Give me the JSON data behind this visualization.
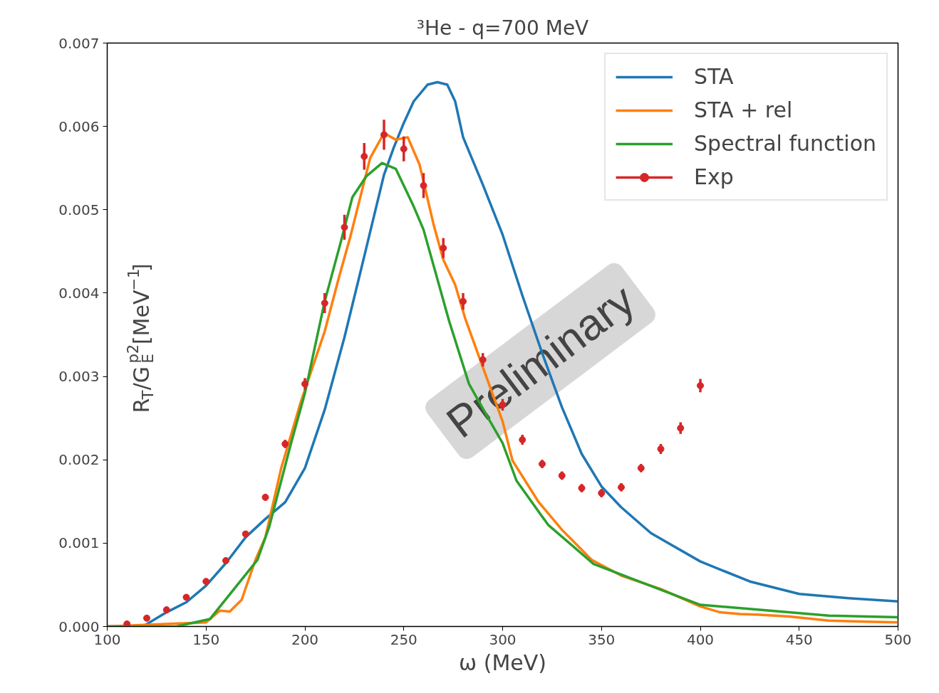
{
  "chart_data": {
    "type": "line",
    "title": "³He - q=700 MeV",
    "xlabel": "ω (MeV)",
    "ylabel": "R$_{T}$/G$_{E}$$^{p2}$[MeV$^{−1}$]",
    "xlim": [
      100,
      500
    ],
    "ylim": [
      0,
      0.007
    ],
    "xticks": [
      100,
      150,
      200,
      250,
      300,
      350,
      400,
      450,
      500
    ],
    "yticks": [
      {
        "value": 0,
        "label": "0.000"
      },
      {
        "value": 0.001,
        "label": "0.001"
      },
      {
        "value": 0.002,
        "label": "0.002"
      },
      {
        "value": 0.003,
        "label": "0.003"
      },
      {
        "value": 0.004,
        "label": "0.004"
      },
      {
        "value": 0.005,
        "label": "0.005"
      },
      {
        "value": 0.006,
        "label": "0.006"
      },
      {
        "value": 0.007,
        "label": "0.007"
      }
    ],
    "grid": false,
    "legend": "top right",
    "line_style": "solid",
    "series": [
      {
        "name": "STA",
        "color": "#1f77b4",
        "x": [
          100,
          118,
          130,
          140,
          150,
          160,
          170,
          180,
          190,
          200,
          210,
          220,
          230,
          240,
          245,
          250,
          255,
          262,
          267,
          272,
          276,
          280,
          290,
          300,
          310,
          320,
          330,
          340,
          350,
          360,
          375,
          400,
          425,
          450,
          475,
          500
        ],
        "values": [
          0,
          0,
          0.00017,
          0.00029,
          0.00049,
          0.00076,
          0.00107,
          0.00129,
          0.00149,
          0.0019,
          0.0026,
          0.00347,
          0.00444,
          0.00542,
          0.00575,
          0.00604,
          0.0063,
          0.0065,
          0.00653,
          0.0065,
          0.0063,
          0.00587,
          0.0053,
          0.0047,
          0.00397,
          0.00328,
          0.00263,
          0.00207,
          0.00168,
          0.00143,
          0.00112,
          0.00078,
          0.00054,
          0.00039,
          0.00034,
          0.0003
        ]
      },
      {
        "name": "STA + rel",
        "color": "#ff7f0e",
        "x": [
          100,
          150,
          157,
          162,
          168,
          175,
          180,
          188,
          198,
          210,
          217,
          223,
          233,
          240,
          246,
          252,
          258,
          265,
          270,
          276,
          281,
          290,
          300,
          305,
          318,
          330,
          345,
          360,
          380,
          400,
          410,
          420,
          430,
          445,
          465,
          480,
          500
        ],
        "values": [
          0,
          5e-05,
          0.00019,
          0.00018,
          0.00032,
          0.0008,
          0.00107,
          0.0019,
          0.0027,
          0.00354,
          0.00417,
          0.00468,
          0.00562,
          0.00592,
          0.00584,
          0.00587,
          0.00554,
          0.00483,
          0.0044,
          0.0041,
          0.0037,
          0.00311,
          0.00246,
          0.00199,
          0.0015,
          0.00116,
          0.0008,
          0.00061,
          0.00045,
          0.00024,
          0.00017,
          0.00015,
          0.00014,
          0.00012,
          7e-05,
          6e-05,
          5e-05
        ]
      },
      {
        "name": "Spectral function",
        "color": "#2ca02c",
        "x": [
          100,
          135,
          152,
          176,
          182,
          193,
          200,
          210,
          218,
          224,
          231,
          239,
          246,
          255,
          260,
          273,
          283,
          292,
          300,
          307,
          323,
          346,
          380,
          400,
          465,
          500
        ],
        "values": [
          0,
          0,
          9e-05,
          0.0008,
          0.0012,
          0.0022,
          0.0028,
          0.0039,
          0.0046,
          0.00515,
          0.0054,
          0.00556,
          0.00549,
          0.00504,
          0.00476,
          0.00366,
          0.00291,
          0.00253,
          0.0022,
          0.00175,
          0.00122,
          0.00075,
          0.00044,
          0.00026,
          0.00013,
          0.00011
        ]
      },
      {
        "name": "Exp",
        "type": "scatter",
        "marker": "circle",
        "color": "#d62728",
        "x": [
          110,
          120,
          130,
          140,
          150,
          160,
          170,
          180,
          190,
          200,
          210,
          220,
          230,
          240,
          250,
          260,
          270,
          280,
          290,
          300,
          310,
          320,
          330,
          340,
          350,
          360,
          370,
          380,
          390,
          400
        ],
        "values": [
          3e-05,
          0.0001,
          0.0002,
          0.00035,
          0.00054,
          0.00079,
          0.00111,
          0.00155,
          0.00219,
          0.00291,
          0.00388,
          0.00479,
          0.00564,
          0.0059,
          0.00573,
          0.00529,
          0.00454,
          0.0039,
          0.0032,
          0.00266,
          0.00224,
          0.00195,
          0.00181,
          0.00166,
          0.0016,
          0.00167,
          0.0019,
          0.00213,
          0.00238,
          0.00289
        ],
        "errors": [
          2e-05,
          2e-05,
          2e-05,
          2e-05,
          2e-05,
          3e-05,
          3e-05,
          4e-05,
          5e-05,
          7e-05,
          0.00012,
          0.00015,
          0.00016,
          0.00018,
          0.00015,
          0.00015,
          0.00012,
          0.0001,
          8e-05,
          7e-05,
          6e-05,
          5e-05,
          5e-05,
          5e-05,
          5e-05,
          5e-05,
          5e-05,
          6e-05,
          7e-05,
          8e-05
        ]
      }
    ],
    "annotations": [
      "Preliminary"
    ]
  }
}
